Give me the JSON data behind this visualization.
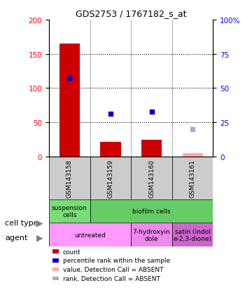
{
  "title": "GDS2753 / 1767182_s_at",
  "samples": [
    "GSM143158",
    "GSM143159",
    "GSM143160",
    "GSM143161"
  ],
  "count_values": [
    165,
    22,
    25,
    null
  ],
  "count_absent": [
    null,
    null,
    null,
    5
  ],
  "percentile_values": [
    115,
    63,
    66,
    null
  ],
  "percentile_absent": [
    null,
    null,
    null,
    40
  ],
  "ylim_left": [
    0,
    200
  ],
  "ylim_right": [
    0,
    100
  ],
  "yticks_left": [
    0,
    50,
    100,
    150,
    200
  ],
  "yticks_right": [
    0,
    25,
    50,
    75,
    100
  ],
  "cell_type_data": [
    {
      "label": "suspension\ncells",
      "start": 0,
      "end": 1,
      "color": "#77dd77"
    },
    {
      "label": "biofilm cells",
      "start": 1,
      "end": 4,
      "color": "#66cc66"
    }
  ],
  "agent_data": [
    {
      "label": "untreated",
      "start": 0,
      "end": 2,
      "color": "#ff99ff"
    },
    {
      "label": "7-hydroxyin\ndole",
      "start": 2,
      "end": 3,
      "color": "#ee88ee"
    },
    {
      "label": "satin (indol\ne-2,3-dione)",
      "start": 3,
      "end": 4,
      "color": "#cc66cc"
    }
  ],
  "legend_items": [
    {
      "color": "#cc0000",
      "label": "count"
    },
    {
      "color": "#0000cc",
      "label": "percentile rank within the sample"
    },
    {
      "color": "#ffaaaa",
      "label": "value, Detection Call = ABSENT"
    },
    {
      "color": "#aaaacc",
      "label": "rank, Detection Call = ABSENT"
    }
  ],
  "bar_color": "#cc0000",
  "bar_absent_color": "#ffaaaa",
  "dot_color": "#0000cc",
  "dot_absent_color": "#aaaacc",
  "sample_box_color": "#cccccc",
  "bar_width": 0.5,
  "dot_size": 4
}
